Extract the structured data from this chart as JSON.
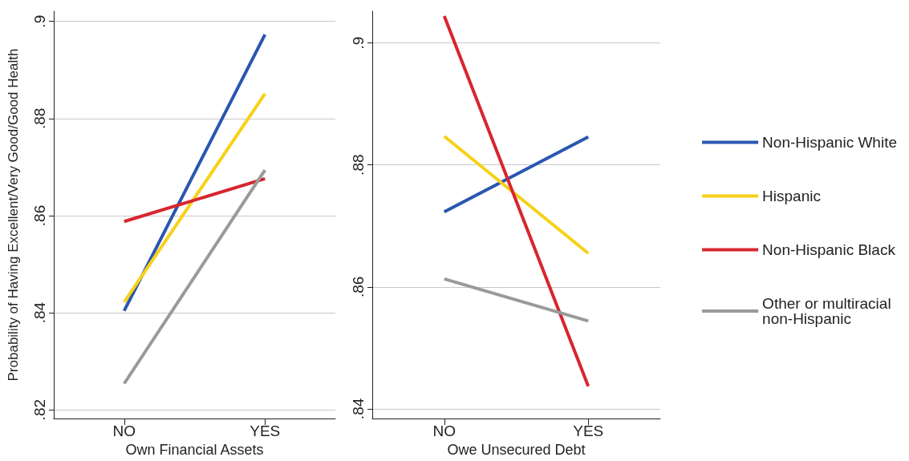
{
  "chart_data": [
    {
      "type": "line",
      "xlabel": "Own Financial Assets",
      "ylabel": "Probability of Having Excellent/Very Good/Good Health",
      "categories": [
        "NO",
        "YES"
      ],
      "ylim": [
        0.8182,
        0.9021
      ],
      "yticks": [
        {
          "value": 0.82,
          "label": ".82"
        },
        {
          "value": 0.84,
          "label": ".84"
        },
        {
          "value": 0.86,
          "label": ".86"
        },
        {
          "value": 0.88,
          "label": ".88"
        },
        {
          "value": 0.9,
          "label": ".9"
        }
      ],
      "grid": "y",
      "legend": false,
      "marker": "none",
      "line_style": "solid",
      "series": [
        {
          "color": "#2a56b0",
          "values": [
            0.8404,
            0.8973
          ]
        },
        {
          "color": "#f7d117",
          "values": [
            0.8422,
            0.8851
          ]
        },
        {
          "color": "#d7262e",
          "values": [
            0.8588,
            0.8676
          ]
        },
        {
          "color": "#9a9a9a",
          "values": [
            0.8254,
            0.8694
          ]
        }
      ]
    },
    {
      "type": "line",
      "xlabel": "Owe Unsecured Debt",
      "categories": [
        "NO",
        "YES"
      ],
      "ylim": [
        0.8384,
        0.9052
      ],
      "yticks": [
        {
          "value": 0.84,
          "label": ".84"
        },
        {
          "value": 0.86,
          "label": ".86"
        },
        {
          "value": 0.88,
          "label": ".88"
        },
        {
          "value": 0.9,
          "label": ".9"
        }
      ],
      "grid": "y",
      "legend": "right",
      "marker": "none",
      "line_style": "solid",
      "series": [
        {
          "name": "Non-Hispanic White",
          "color": "#2a56b0",
          "values": [
            0.8723,
            0.8846
          ]
        },
        {
          "name": "Hispanic",
          "color": "#f7d117",
          "values": [
            0.8847,
            0.8655
          ]
        },
        {
          "name": "Non-Hispanic Black",
          "color": "#d7262e",
          "values": [
            0.9044,
            0.8437
          ]
        },
        {
          "name": "Other or multiracial non-Hispanic",
          "color": "#9a9a9a",
          "values": [
            0.8613,
            0.8544
          ]
        }
      ]
    }
  ]
}
